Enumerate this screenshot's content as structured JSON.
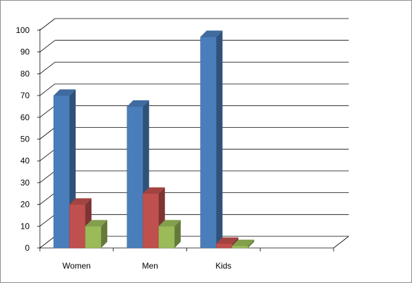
{
  "chart_data": {
    "type": "bar",
    "categories": [
      "Women",
      "Men",
      "Kids",
      ""
    ],
    "series": [
      {
        "values": [
          70,
          65,
          97,
          null
        ],
        "color": "#4a7ebb"
      },
      {
        "values": [
          20,
          25,
          2,
          null
        ],
        "color": "#c0504d"
      },
      {
        "values": [
          10,
          10,
          1,
          null
        ],
        "color": "#9bbb59"
      }
    ],
    "ylim": [
      0,
      100
    ],
    "yticks": [
      "0",
      "10",
      "20",
      "30",
      "40",
      "50",
      "60",
      "70",
      "80",
      "90",
      "100"
    ],
    "grid": true,
    "legend": "none",
    "style": "3d-clustered-column"
  }
}
